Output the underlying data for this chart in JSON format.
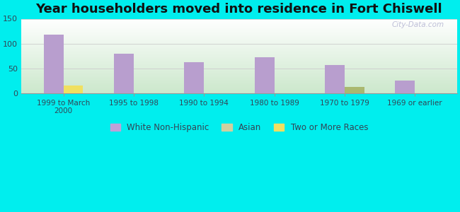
{
  "title": "Year householders moved into residence in Fort Chiswell",
  "background_color": "#00EEEE",
  "plot_bg_top": "#ffffff",
  "plot_bg_bottom": "#cce8cc",
  "categories": [
    "1999 to March\n2000",
    "1995 to 1998",
    "1990 to 1994",
    "1980 to 1989",
    "1970 to 1979",
    "1969 or earlier"
  ],
  "white_nonhispanic": [
    118,
    79,
    63,
    73,
    56,
    25
  ],
  "asian": [
    0,
    0,
    0,
    0,
    0,
    0
  ],
  "two_or_more_1999": 15,
  "two_or_more_1970": 13,
  "two_or_more": [
    15,
    0,
    0,
    0,
    13,
    0
  ],
  "bar_color_white": "#b89ece",
  "bar_color_asian": "#c8c8a8",
  "bar_color_two_yellow": "#f0e060",
  "bar_color_two_olive": "#aab870",
  "ylim": [
    0,
    150
  ],
  "yticks": [
    0,
    50,
    100,
    150
  ],
  "bar_width": 0.28,
  "legend_labels": [
    "White Non-Hispanic",
    "Asian",
    "Two or More Races"
  ],
  "legend_colors": [
    "#c0a0d8",
    "#d0d0a0",
    "#f0e060"
  ],
  "title_fontsize": 13,
  "watermark": "City-Data.com"
}
